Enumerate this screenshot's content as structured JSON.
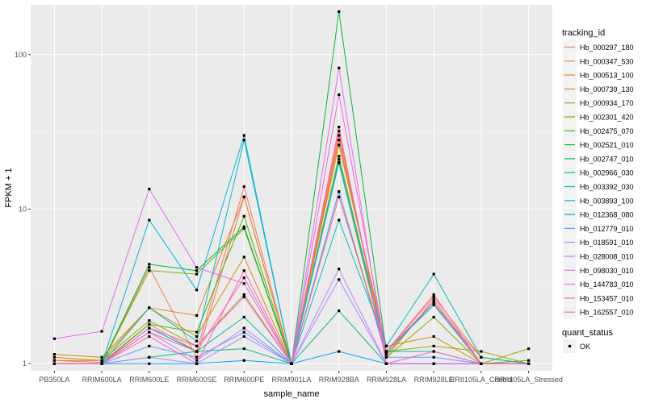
{
  "chart_data": {
    "type": "line",
    "xlabel": "sample_name",
    "ylabel": "FPKM + 1",
    "y_scale": "log10",
    "ylim": [
      0.9,
      210
    ],
    "y_ticks": [
      1,
      10,
      100
    ],
    "y_tick_labels": [
      "1",
      "10",
      "100"
    ],
    "grid": true,
    "legend_position": "right",
    "categories": [
      "PB350LA",
      "RRIM600LA",
      "RRIM600LE",
      "RRIM600SE",
      "RRIM600PE",
      "RRIM901LA",
      "RRIM928BA",
      "RRIM928LA",
      "RRIM928LE",
      "RRII105LA_Control",
      "RRII105LA_Stressed"
    ],
    "legend_title": "tracking_id",
    "series": [
      {
        "name": "Hb_000297_180",
        "color": "#F8766D",
        "values": [
          1.05,
          1.02,
          1.8,
          1.2,
          14,
          1.0,
          32,
          1.1,
          2.6,
          1.0,
          1.0
        ]
      },
      {
        "name": "Hb_000347_530",
        "color": "#F17D50",
        "values": [
          1.0,
          1.0,
          4.2,
          1.1,
          12,
          1.0,
          30,
          1.2,
          2.7,
          1.1,
          1.0
        ]
      },
      {
        "name": "Hb_000513_100",
        "color": "#E7861B",
        "values": [
          1.1,
          1.05,
          2.3,
          2.05,
          12,
          1.0,
          28,
          1.2,
          2.4,
          1.1,
          1.0
        ]
      },
      {
        "name": "Hb_000739_130",
        "color": "#DB8E00",
        "values": [
          1.15,
          1.1,
          2.3,
          1.5,
          4.9,
          1.0,
          26,
          1.3,
          1.5,
          1.0,
          1.0
        ]
      },
      {
        "name": "Hb_000934_170",
        "color": "#A3A500",
        "values": [
          1.05,
          1.05,
          1.9,
          1.3,
          2.8,
          1.0,
          22,
          1.2,
          1.3,
          1.2,
          1.0
        ]
      },
      {
        "name": "Hb_002301_420",
        "color": "#8BAB00",
        "values": [
          1.0,
          1.0,
          4.0,
          3.8,
          7.5,
          1.0,
          20,
          1.1,
          2.0,
          1.0,
          1.25
        ]
      },
      {
        "name": "Hb_002475_070",
        "color": "#53B400",
        "values": [
          1.0,
          1.0,
          1.8,
          1.6,
          9.0,
          1.0,
          13,
          1.15,
          2.5,
          1.0,
          1.05
        ]
      },
      {
        "name": "Hb_002521_010",
        "color": "#00BA38",
        "values": [
          1.0,
          1.0,
          4.4,
          4.0,
          7.7,
          1.0,
          190,
          1.2,
          2.5,
          1.0,
          1.0
        ]
      },
      {
        "name": "Hb_002747_010",
        "color": "#00BF7D",
        "values": [
          1.0,
          1.0,
          1.1,
          1.2,
          1.25,
          1.0,
          2.2,
          1.0,
          1.0,
          1.0,
          1.0
        ]
      },
      {
        "name": "Hb_002966_030",
        "color": "#00C0A3",
        "values": [
          1.0,
          1.0,
          1.7,
          1.2,
          2.0,
          1.0,
          20,
          1.2,
          1.2,
          1.0,
          1.0
        ]
      },
      {
        "name": "Hb_003392_030",
        "color": "#00BFC4",
        "values": [
          1.0,
          1.0,
          2.3,
          1.4,
          28,
          1.0,
          8.5,
          1.3,
          3.8,
          1.1,
          1.0
        ]
      },
      {
        "name": "Hb_003893_100",
        "color": "#00B8E7",
        "values": [
          1.0,
          1.0,
          8.5,
          3.0,
          30,
          1.0,
          21,
          1.2,
          2.4,
          1.0,
          1.0
        ]
      },
      {
        "name": "Hb_012368_080",
        "color": "#00A9FF",
        "values": [
          1.0,
          1.0,
          1.0,
          1.0,
          1.05,
          1.0,
          1.2,
          1.0,
          1.0,
          1.0,
          1.0
        ]
      },
      {
        "name": "Hb_012779_010",
        "color": "#619CFF",
        "values": [
          1.0,
          1.0,
          1.3,
          1.1,
          1.6,
          1.0,
          13,
          1.1,
          1.1,
          1.0,
          1.0
        ]
      },
      {
        "name": "Hb_018591_010",
        "color": "#A58AFF",
        "values": [
          1.0,
          1.0,
          1.1,
          1.0,
          1.5,
          1.0,
          3.5,
          1.0,
          1.0,
          1.0,
          1.0
        ]
      },
      {
        "name": "Hb_028008_010",
        "color": "#C77CFF",
        "values": [
          1.0,
          1.0,
          1.6,
          1.05,
          1.7,
          1.0,
          4.1,
          1.0,
          1.0,
          1.0,
          1.0
        ]
      },
      {
        "name": "Hb_098030_010",
        "color": "#E76BF3",
        "values": [
          1.45,
          1.62,
          13.5,
          4.2,
          3.3,
          1.0,
          82,
          1.0,
          1.0,
          1.0,
          1.0
        ]
      },
      {
        "name": "Hb_144783_010",
        "color": "#F564E3",
        "values": [
          1.0,
          1.0,
          1.7,
          1.3,
          2.7,
          1.0,
          55,
          1.2,
          2.5,
          1.0,
          1.0
        ]
      },
      {
        "name": "Hb_153457_010",
        "color": "#FF61C3",
        "values": [
          1.0,
          1.0,
          1.5,
          1.0,
          4.0,
          1.0,
          34,
          1.0,
          1.2,
          1.0,
          1.0
        ]
      },
      {
        "name": "Hb_162557_010",
        "color": "#FF67A4",
        "values": [
          1.0,
          1.0,
          1.6,
          1.2,
          3.6,
          1.0,
          12,
          1.2,
          2.8,
          1.0,
          1.0
        ]
      }
    ],
    "shape_legend": {
      "title": "quant_status",
      "items": [
        "OK"
      ]
    }
  }
}
